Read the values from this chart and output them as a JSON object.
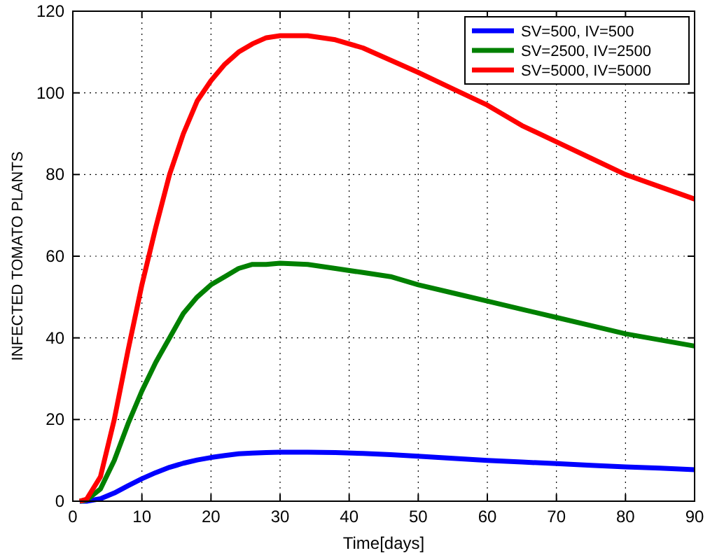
{
  "chart_data": {
    "type": "line",
    "xlabel": "Time[days]",
    "ylabel": "INFECTED TOMATO PLANTS",
    "x": [
      1,
      2,
      4,
      6,
      8,
      10,
      12,
      14,
      16,
      18,
      20,
      22,
      24,
      26,
      28,
      30,
      34,
      38,
      42,
      46,
      50,
      55,
      60,
      65,
      70,
      75,
      80,
      85,
      90
    ],
    "series": [
      {
        "name": "SV=500, IV=500",
        "color": "#0000ff",
        "values": [
          0,
          0,
          0.6,
          2,
          3.8,
          5.5,
          7,
          8.3,
          9.3,
          10.1,
          10.7,
          11.2,
          11.6,
          11.8,
          11.9,
          12,
          12,
          11.9,
          11.7,
          11.4,
          11,
          10.5,
          10,
          9.6,
          9.2,
          8.8,
          8.4,
          8.1,
          7.7
        ]
      },
      {
        "name": "SV=2500, IV=2500",
        "color": "#008000",
        "values": [
          0,
          0.3,
          3,
          10,
          19,
          27,
          34,
          40,
          46,
          50,
          53,
          55,
          57,
          58,
          58,
          58.3,
          58,
          57,
          56,
          55,
          53,
          51,
          49,
          47,
          45,
          43,
          41,
          39.5,
          38
        ]
      },
      {
        "name": "SV=5000, IV=5000",
        "color": "#ff0000",
        "values": [
          0,
          0.5,
          6,
          20,
          37,
          53,
          67,
          80,
          90,
          98,
          103,
          107,
          110,
          112,
          113.5,
          114,
          114,
          113,
          111,
          108,
          105,
          101,
          97,
          92,
          88,
          84,
          80,
          77,
          74
        ]
      }
    ],
    "xlim": [
      0,
      90
    ],
    "xticks": [
      0,
      10,
      20,
      30,
      40,
      50,
      60,
      70,
      80,
      90
    ],
    "ylim": [
      0,
      120
    ],
    "yticks": [
      0,
      20,
      40,
      60,
      80,
      100,
      120
    ],
    "grid": true,
    "legend": "top right",
    "line_style": "solid",
    "marker": "none"
  }
}
